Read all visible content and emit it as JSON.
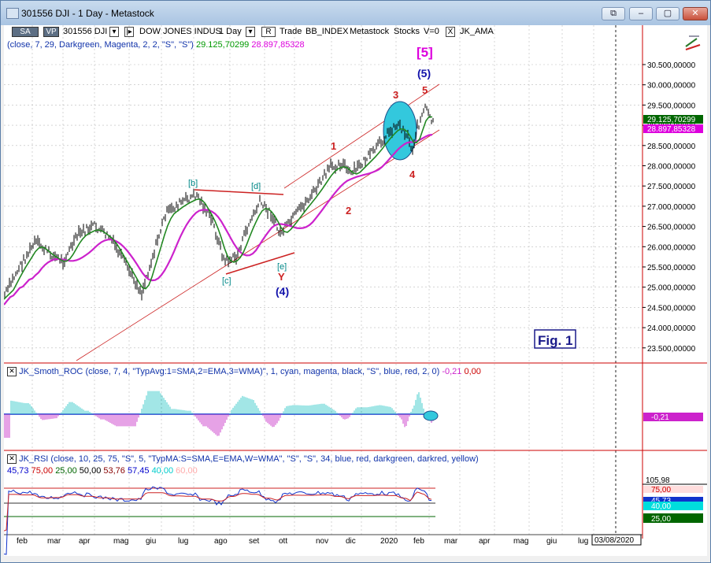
{
  "window": {
    "title": "301556 DJI - 1 Day - Metastock",
    "controls": [
      "⧉",
      "–",
      "▢",
      "✕"
    ]
  },
  "toolbar": {
    "sa": "SA",
    "vp": "VP",
    "symbol": "301556 DJI",
    "name": "DOW JONES INDUS",
    "period": "1 Day",
    "r": "R",
    "trade": "Trade",
    "exchange": "BB_INDEX",
    "app": "Metastock",
    "market": "Stocks",
    "volume": "V=0",
    "x": "X",
    "indicator": "JK_AMA"
  },
  "ama_line": {
    "params": "(close, 7, 29, Darkgreen, Magenta, 2, 2, \"S\", \"S\")",
    "value1": "29.125,70299",
    "value2": "28.897,85328",
    "value1_color": "#009900",
    "value2_color": "#dd00dd"
  },
  "price_axis": [
    "30.500,00000",
    "30.000,00000",
    "29.500,00000",
    "29.000,00000",
    "28.500,00000",
    "28.000,00000",
    "27.500,00000",
    "27.000,00000",
    "26.500,00000",
    "26.000,00000",
    "25.500,00000",
    "25.000,00000",
    "24.500,00000",
    "24.000,00000",
    "23.500,00000"
  ],
  "price_badges": {
    "green": "29.125,70299",
    "magenta": "28.897,85328"
  },
  "waves": {
    "top_box": "[5]",
    "five_paren": "(5)",
    "three": "3",
    "five": "5",
    "one": "1",
    "two": "2",
    "four": "4",
    "b": "[b]",
    "d": "[d]",
    "c": "[c]",
    "e": "[e]",
    "y": "Y",
    "four_paren": "(4)"
  },
  "fig_label": "Fig. 1",
  "roc": {
    "name": "JK_Smoth_ROC",
    "params": "(close, 7, 4, \"TypAvg:1=SMA,2=EMA,3=WMA)\", 1, cyan, magenta, black, \"S\", blue, red, 2, 0)",
    "value1": "-0,21",
    "value2": "0,00",
    "badge": "-0,21"
  },
  "rsi": {
    "name": "JK_RSI",
    "params": "(close, 10, 25, 75, \"S\", 5, \"TypMA:S=SMA,E=EMA,W=WMA\", \"S\", \"S\", 34, blue, red, darkgreen, darkred, yellow)",
    "values": [
      "45,73",
      "75,00",
      "25,00",
      "50,00",
      "53,76",
      "57,45",
      "40,00",
      "60,00"
    ],
    "value_colors": [
      "#0000cc",
      "#cc0000",
      "#006600",
      "#000000",
      "#880000",
      "#0000cc",
      "#00cccc",
      "#ffaaaa"
    ],
    "axis_top": "105,98",
    "badges": [
      "75,00",
      "45,73",
      "40,00",
      "25,00"
    ]
  },
  "months": [
    "feb",
    "mar",
    "apr",
    "mag",
    "giu",
    "lug",
    "ago",
    "set",
    "ott",
    "nov",
    "dic",
    "2020",
    "feb",
    "mar",
    "apr",
    "mag",
    "giu",
    "lug"
  ],
  "date_badge": "03/08/2020"
}
